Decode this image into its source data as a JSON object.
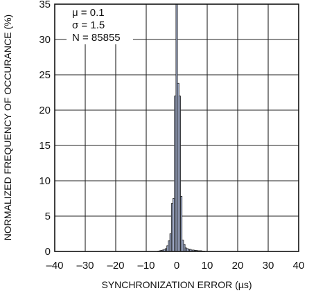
{
  "chart_data": {
    "type": "bar",
    "xlabel": "SYNCHRONIZATION ERROR (µs)",
    "ylabel": "NORMALIZED FREQUENCY OF OCCURANCE (%)",
    "xlim": [
      -40,
      40
    ],
    "ylim": [
      0,
      35
    ],
    "xticks": [
      -40,
      -30,
      -20,
      -10,
      0,
      10,
      20,
      30,
      40
    ],
    "yticks": [
      0,
      5,
      10,
      15,
      20,
      25,
      30,
      35
    ],
    "xtick_labels": [
      "–40",
      "–30",
      "–20",
      "–10",
      "0",
      "10",
      "20",
      "30",
      "40"
    ],
    "ytick_labels": [
      "0",
      "5",
      "10",
      "15",
      "20",
      "25",
      "30",
      "35"
    ],
    "grid": true,
    "bin_width": 0.5,
    "bins": [
      {
        "x": -6.0,
        "y": 0.05
      },
      {
        "x": -5.5,
        "y": 0.1
      },
      {
        "x": -5.0,
        "y": 0.15
      },
      {
        "x": -4.5,
        "y": 0.2
      },
      {
        "x": -4.0,
        "y": 0.3
      },
      {
        "x": -3.5,
        "y": 0.4
      },
      {
        "x": -3.0,
        "y": 0.8
      },
      {
        "x": -2.5,
        "y": 1.5
      },
      {
        "x": -2.0,
        "y": 2.5
      },
      {
        "x": -1.5,
        "y": 6.8
      },
      {
        "x": -1.0,
        "y": 7.5
      },
      {
        "x": -0.5,
        "y": 22.0
      },
      {
        "x": 0.0,
        "y": 35.0
      },
      {
        "x": 0.5,
        "y": 23.8
      },
      {
        "x": 1.0,
        "y": 22.0
      },
      {
        "x": 1.5,
        "y": 7.8
      },
      {
        "x": 2.0,
        "y": 1.6
      },
      {
        "x": 2.5,
        "y": 1.0
      },
      {
        "x": 3.0,
        "y": 0.5
      },
      {
        "x": 3.5,
        "y": 0.4
      },
      {
        "x": 4.0,
        "y": 0.3
      },
      {
        "x": 4.5,
        "y": 0.3
      },
      {
        "x": 5.0,
        "y": 0.2
      },
      {
        "x": 5.5,
        "y": 0.2
      },
      {
        "x": 6.0,
        "y": 0.15
      },
      {
        "x": 6.5,
        "y": 0.15
      },
      {
        "x": 7.0,
        "y": 0.1
      },
      {
        "x": 7.5,
        "y": 0.1
      },
      {
        "x": 8.0,
        "y": 0.1
      },
      {
        "x": 8.5,
        "y": 0.05
      },
      {
        "x": 9.0,
        "y": 0.05
      }
    ],
    "bar_fill": "#a7b3d2",
    "bar_stroke": "#1a1a1a",
    "annotations": [
      "μ = 0.1",
      "σ = 1.5",
      "N = 85855"
    ]
  }
}
